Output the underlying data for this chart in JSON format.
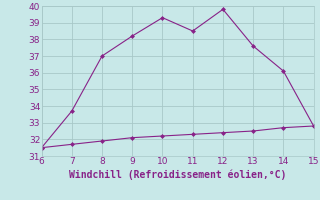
{
  "xlabel": "Windchill (Refroidissement éolien,°C)",
  "x": [
    6,
    7,
    8,
    9,
    10,
    11,
    12,
    13,
    14,
    15
  ],
  "y_upper": [
    31.5,
    33.7,
    37.0,
    38.2,
    39.3,
    38.5,
    39.8,
    37.6,
    36.1,
    32.8
  ],
  "y_lower": [
    31.5,
    31.7,
    31.9,
    32.1,
    32.2,
    32.3,
    32.4,
    32.5,
    32.7,
    32.8
  ],
  "line_color": "#882288",
  "bg_color": "#c8e8e8",
  "grid_color": "#a8c8c8",
  "axis_label_color": "#882288",
  "tick_color": "#882288",
  "xlim": [
    6,
    15
  ],
  "ylim": [
    31,
    40
  ],
  "yticks": [
    31,
    32,
    33,
    34,
    35,
    36,
    37,
    38,
    39,
    40
  ],
  "xticks": [
    6,
    7,
    8,
    9,
    10,
    11,
    12,
    13,
    14,
    15
  ]
}
